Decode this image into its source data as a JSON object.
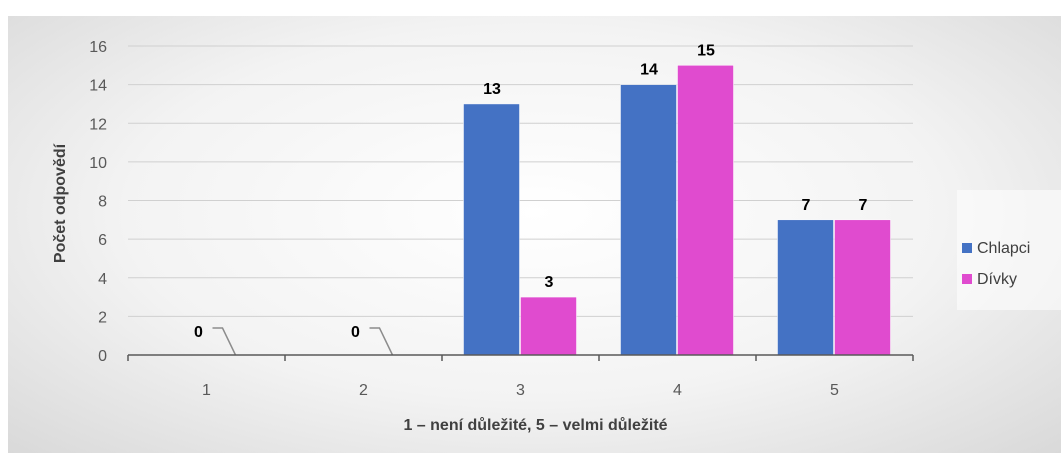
{
  "chart_data": {
    "type": "bar",
    "categories": [
      "1",
      "2",
      "3",
      "4",
      "5"
    ],
    "series": [
      {
        "name": "Chlapci",
        "values": [
          0,
          0,
          13,
          14,
          7
        ],
        "color": "#4472C4"
      },
      {
        "name": "Dívky",
        "values": [
          0,
          0,
          3,
          15,
          7
        ],
        "color": "#E04BCF"
      }
    ],
    "xlabel": "1 – není důležité, 5 – velmi důležité",
    "ylabel": "Počet odpovědí",
    "ylim": [
      0,
      16
    ],
    "yticks": [
      0,
      2,
      4,
      6,
      8,
      10,
      12,
      14,
      16
    ],
    "grid": true,
    "legend_position": "right",
    "data_labels": true
  }
}
